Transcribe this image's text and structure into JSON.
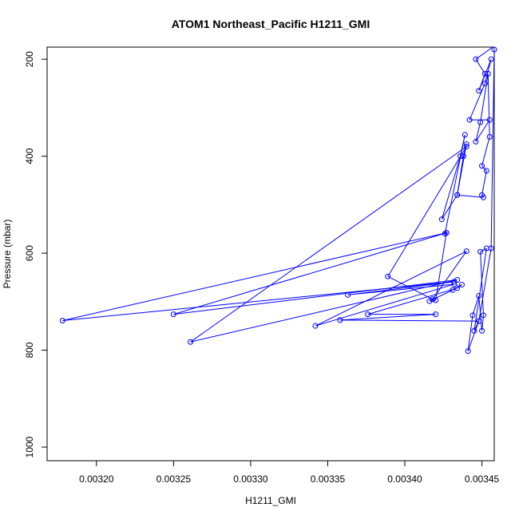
{
  "chart_data": {
    "type": "line",
    "title": "ATOM1 Northeast_Pacific H1211_GMI",
    "xlabel": "H1211_GMI",
    "ylabel": "Pressure (mbar)",
    "xlim": [
      0.003168,
      0.003458
    ],
    "ylim": [
      1028,
      175
    ],
    "y_reversed": true,
    "x_ticks": [
      "0.00320",
      "0.00325",
      "0.00330",
      "0.00335",
      "0.00340",
      "0.00345"
    ],
    "y_ticks": [
      "200",
      "400",
      "600",
      "800",
      "1000"
    ],
    "series": [
      {
        "color": "#0000ff",
        "marker": "open-circle",
        "points": [
          [
            0.003457,
            170
          ],
          [
            0.003446,
            200
          ],
          [
            0.003452,
            230
          ],
          [
            0.003448,
            265
          ],
          [
            0.003456,
            200
          ],
          [
            0.003452,
            250
          ],
          [
            0.003442,
            325
          ],
          [
            0.003455,
            325
          ],
          [
            0.003446,
            370
          ],
          [
            0.003449,
            330
          ],
          [
            0.003454,
            230
          ],
          [
            0.003455,
            360
          ],
          [
            0.00345,
            420
          ],
          [
            0.003453,
            430
          ],
          [
            0.00345,
            480
          ],
          [
            0.003451,
            485
          ],
          [
            0.003434,
            480
          ],
          [
            0.003438,
            400
          ],
          [
            0.00344,
            375
          ],
          [
            0.003434,
            480
          ],
          [
            0.003424,
            530
          ],
          [
            0.003436,
            400
          ],
          [
            0.003439,
            356
          ],
          [
            0.003426,
            560
          ],
          [
            0.003427,
            558
          ],
          [
            0.00325,
            726
          ],
          [
            0.003434,
            655
          ],
          [
            0.003261,
            783
          ],
          [
            0.00344,
            380
          ],
          [
            0.003389,
            648
          ],
          [
            0.003418,
            695
          ],
          [
            0.00344,
            596
          ],
          [
            0.003342,
            750
          ],
          [
            0.003432,
            664
          ],
          [
            0.003363,
            686
          ],
          [
            0.003432,
            659
          ],
          [
            0.003178,
            739
          ],
          [
            0.003427,
            558
          ],
          [
            0.00342,
            697
          ],
          [
            0.003416,
            699
          ],
          [
            0.003431,
            676
          ],
          [
            0.003437,
            665
          ],
          [
            0.003434,
            672
          ],
          [
            0.003376,
            726
          ],
          [
            0.00342,
            726
          ],
          [
            0.003358,
            738
          ],
          [
            0.003448,
            740
          ],
          [
            0.003441,
            802
          ],
          [
            0.003444,
            728
          ],
          [
            0.003448,
            688
          ],
          [
            0.00345,
            760
          ],
          [
            0.003451,
            728
          ],
          [
            0.003449,
            597
          ],
          [
            0.003453,
            590
          ],
          [
            0.003445,
            760
          ],
          [
            0.003448,
            740
          ],
          [
            0.003456,
            590
          ],
          [
            0.003458,
            180
          ]
        ]
      }
    ],
    "grid": false,
    "legend": "none"
  }
}
